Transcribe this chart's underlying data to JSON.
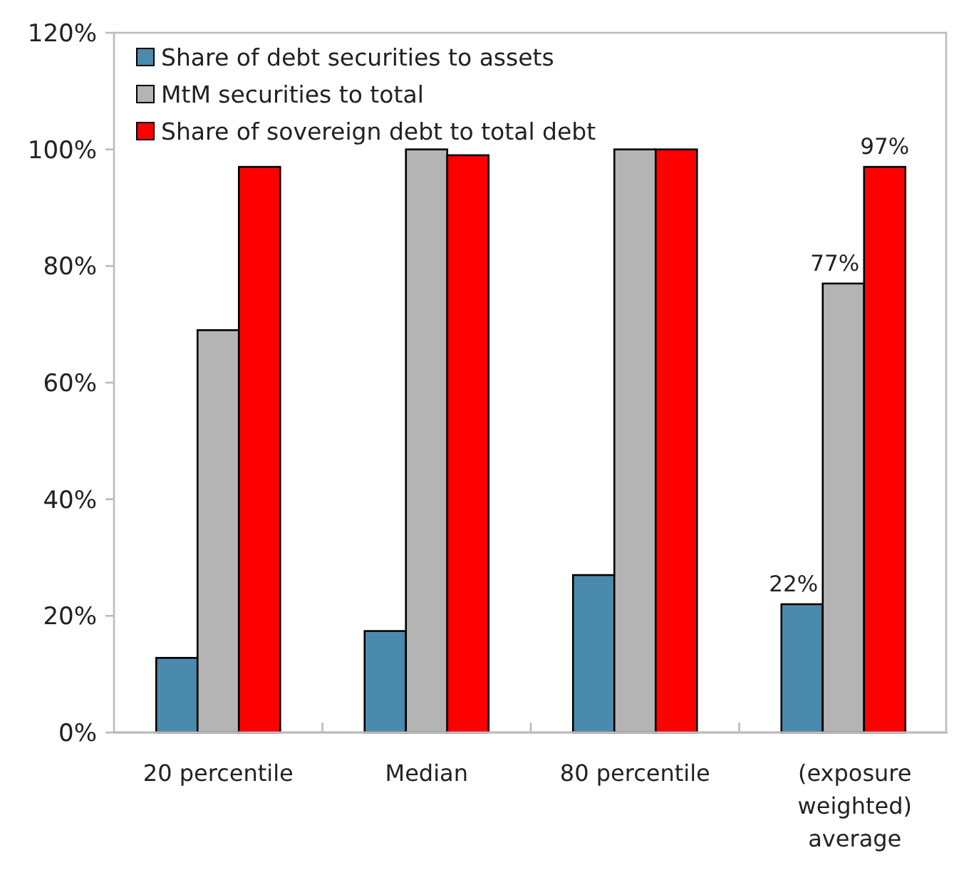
{
  "chart_data": {
    "type": "bar",
    "categories": [
      "20 percentile",
      "Median",
      "80 percentile",
      "(exposure weighted) average"
    ],
    "series": [
      {
        "name": "Share of debt securities to assets",
        "color": "#4a8aad",
        "values": [
          12.8,
          17.4,
          27,
          22
        ],
        "value_labels": [
          null,
          null,
          null,
          "22%"
        ]
      },
      {
        "name": "MtM securities to total",
        "color": "#b4b4b4",
        "values": [
          69,
          100,
          100,
          77
        ],
        "value_labels": [
          null,
          null,
          null,
          "77%"
        ]
      },
      {
        "name": "Share of sovereign debt to total debt",
        "color": "#ff0000",
        "values": [
          97,
          99,
          100,
          97
        ],
        "value_labels": [
          null,
          null,
          null,
          "97%"
        ]
      }
    ],
    "ylim": [
      0,
      120
    ],
    "yticks": [
      {
        "value": 0,
        "label": "0%"
      },
      {
        "value": 20,
        "label": "20%"
      },
      {
        "value": 40,
        "label": "40%"
      },
      {
        "value": 60,
        "label": "60%"
      },
      {
        "value": 80,
        "label": "80%"
      },
      {
        "value": 100,
        "label": "100%"
      },
      {
        "value": 120,
        "label": "120%"
      }
    ],
    "grid": false,
    "legend": "top left"
  }
}
